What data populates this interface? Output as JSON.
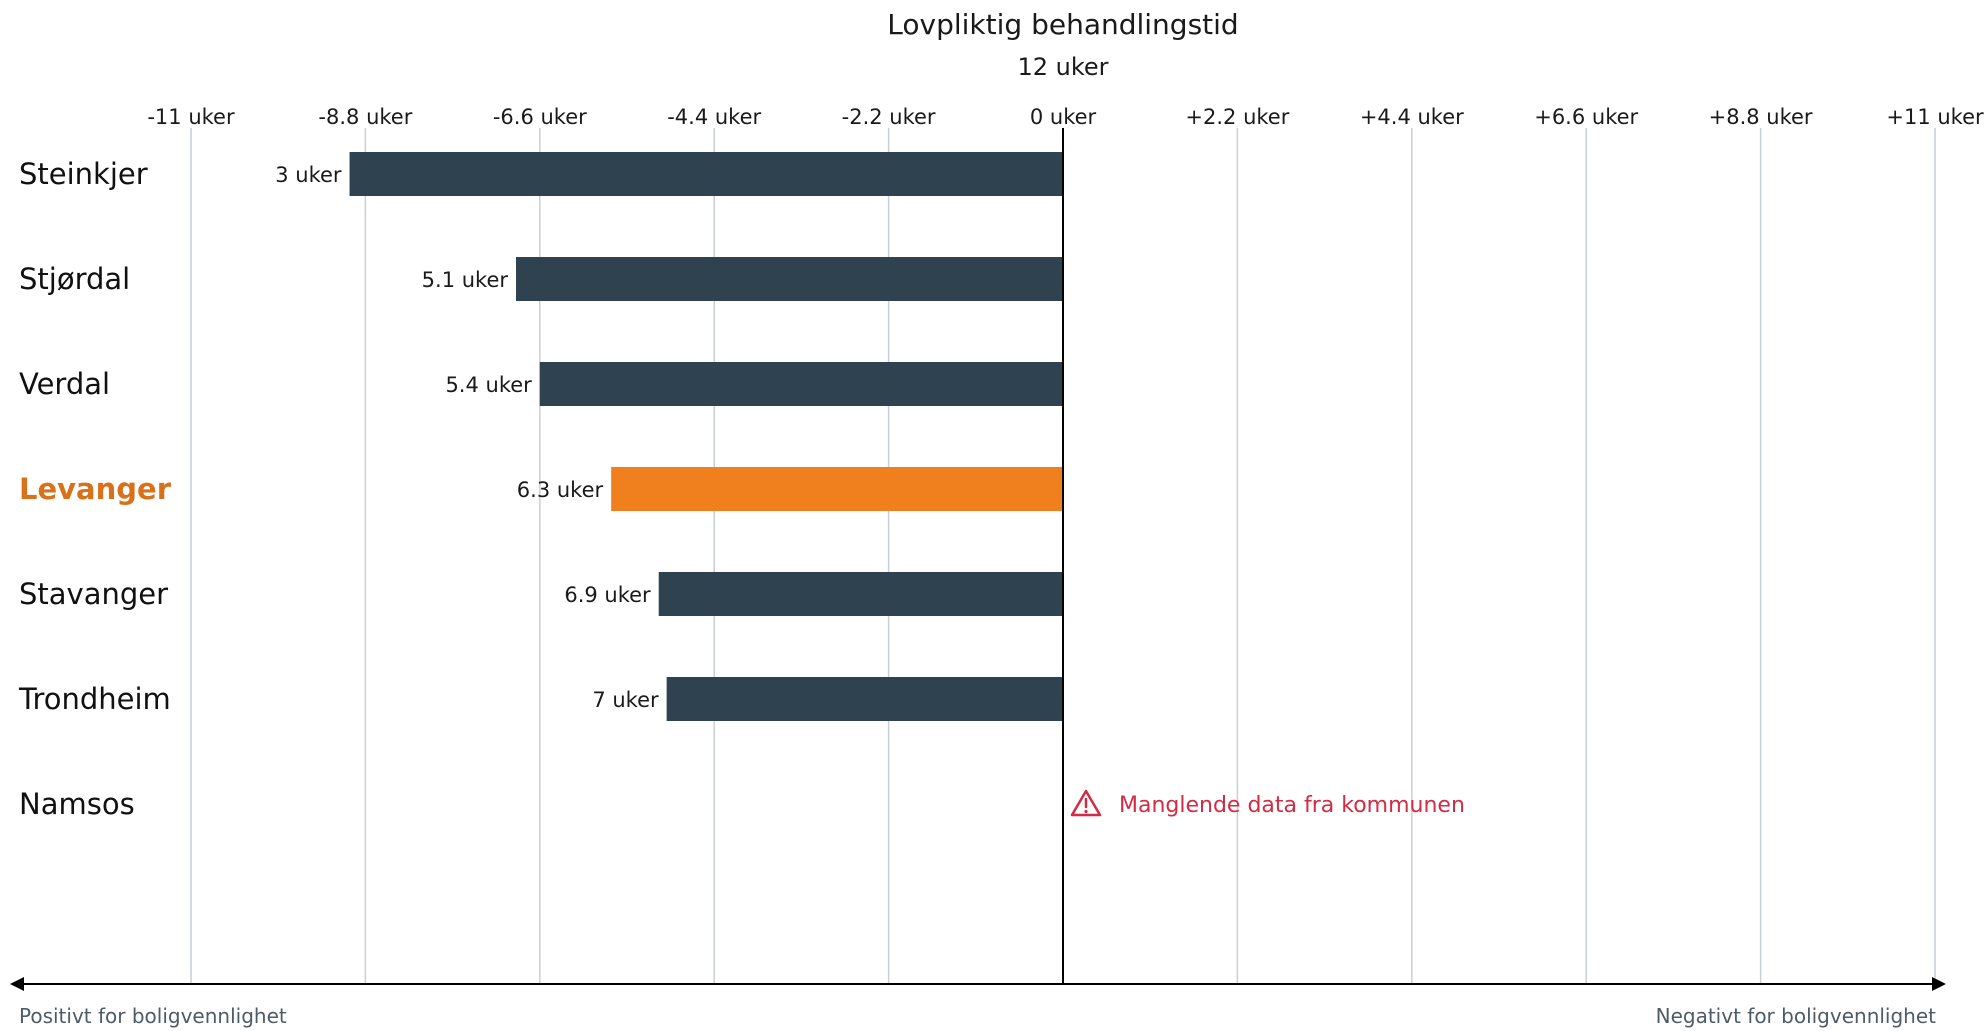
{
  "chart_data": {
    "type": "bar",
    "orientation": "horizontal",
    "title": "Lovpliktig behandlingstid",
    "subtitle": "12 uker",
    "x_ticks": [
      "-11 uker",
      "-8.8 uker",
      "-6.6 uker",
      "-4.4 uker",
      "-2.2 uker",
      "0 uker",
      "+2.2 uker",
      "+4.4 uker",
      "+6.6 uker",
      "+8.8 uker",
      "+11 uker"
    ],
    "xlim": [
      -11,
      11
    ],
    "grid": true,
    "categories": [
      "Steinkjer",
      "Stjørdal",
      "Verdal",
      "Levanger",
      "Stavanger",
      "Trondheim",
      "Namsos"
    ],
    "values": [
      -9,
      -6.9,
      -6.6,
      -5.7,
      -5.1,
      -5,
      null
    ],
    "data_labels": [
      "3 uker",
      "5.1 uker",
      "5.4 uker",
      "6.3 uker",
      "6.9 uker",
      "7 uker",
      ""
    ],
    "highlight": "Levanger",
    "missing_note": "Manglende data fra kommunen",
    "left_axis_label": "Positivt for boligvennlighet",
    "right_axis_label": "Negativt for boligvennlighet",
    "colors": {
      "bar": "#2e424f",
      "highlight": "#f0801e",
      "highlight_label": "#d9701a",
      "warning": "#d42b45",
      "grid": "#c9cfd6",
      "axis": "#000000",
      "footer_text": "#4f5b66"
    }
  }
}
